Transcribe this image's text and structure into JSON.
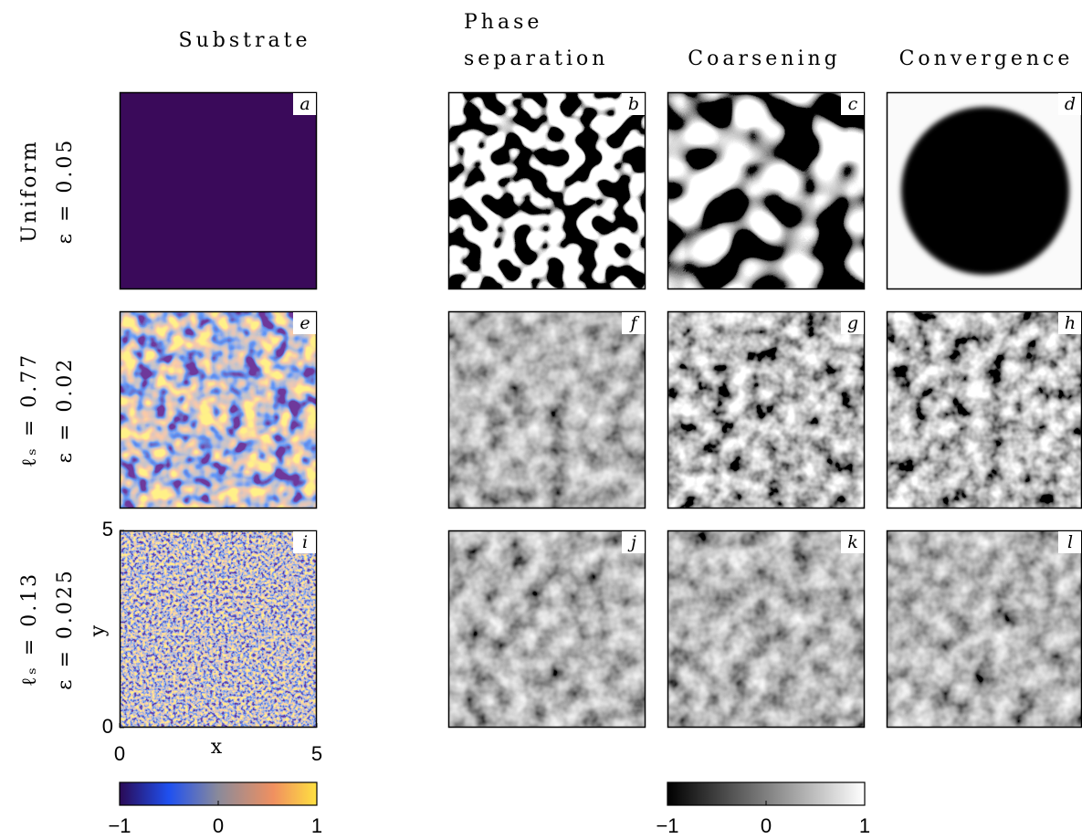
{
  "column_headers": [
    [
      "Substrate"
    ],
    [
      "Phase",
      "separation"
    ],
    [
      "Coarsening"
    ],
    [
      "Convergence"
    ]
  ],
  "rows": [
    {
      "labels": [
        "Uniform",
        "ε = 0.05"
      ],
      "panels": [
        "a",
        "b",
        "c",
        "d"
      ]
    },
    {
      "labels": [
        "ℓₛ = 0.77",
        "ε = 0.02"
      ],
      "panels": [
        "e",
        "f",
        "g",
        "h"
      ]
    },
    {
      "labels": [
        "ℓₛ = 0.13",
        "ε = 0.025"
      ],
      "panels": [
        "i",
        "j",
        "k",
        "l"
      ]
    }
  ],
  "axes": {
    "xlabel": "x",
    "ylabel": "y",
    "xlim": [
      0,
      5
    ],
    "ylim": [
      0,
      5
    ],
    "xticks": [
      0,
      5
    ],
    "yticks": [
      0,
      5
    ]
  },
  "colorbars": [
    {
      "lim": [
        -1,
        1
      ],
      "ticks": [
        {
          "value": -1,
          "label": "−1"
        },
        0,
        1
      ]
    },
    {
      "lim": [
        -1,
        1
      ],
      "ticks": [
        {
          "value": -1,
          "label": "−1"
        },
        0,
        1
      ]
    }
  ]
}
